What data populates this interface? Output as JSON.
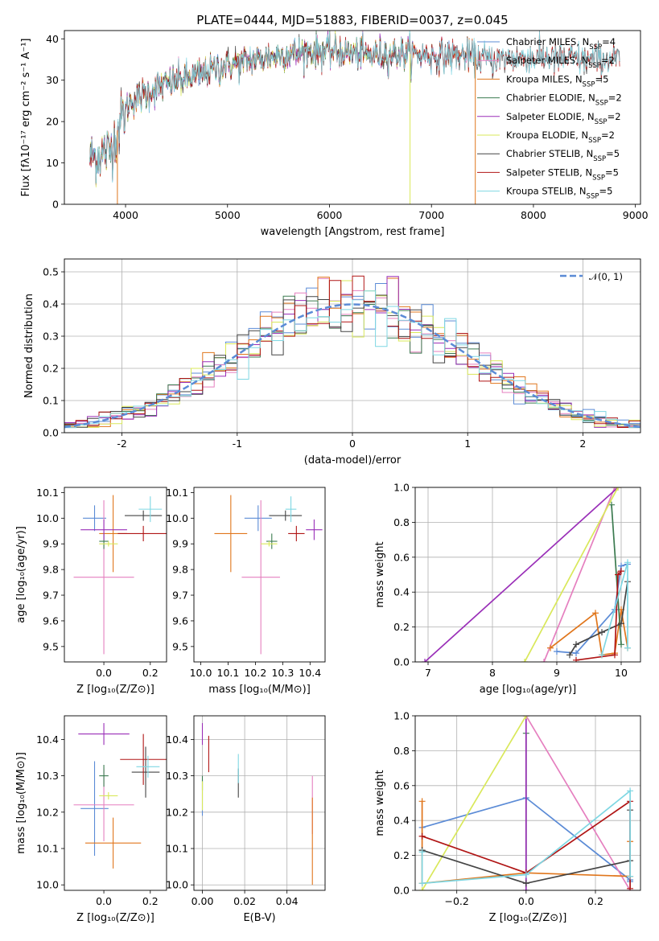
{
  "colors": {
    "Chabrier MILES": "#5b8bd6",
    "Salpeter MILES": "#e57fbf",
    "Kroupa MILES": "#e0761c",
    "Chabrier ELODIE": "#3c7b50",
    "Salpeter ELODIE": "#9a2fb8",
    "Kroupa ELODIE": "#d9e85a",
    "Chabrier STELIB": "#444444",
    "Salpeter STELIB": "#b01515",
    "Kroupa STELIB": "#7fd7e3",
    "normal": "#5b8bd6"
  },
  "chart_data": [
    {
      "id": "spectrum",
      "type": "line",
      "title": "PLATE=0444, MJD=51883, FIBERID=0037, z=0.045",
      "xlabel": "wavelength [Angstrom, rest frame]",
      "ylabel": "Flux [fλ10⁻¹⁷ erg cm⁻² s⁻¹ A⁻¹]",
      "xlim": [
        3400,
        9050
      ],
      "ylim": [
        0,
        42
      ],
      "xticks": [
        4000,
        5000,
        6000,
        7000,
        8000,
        9000
      ],
      "yticks": [
        0,
        10,
        20,
        30,
        40
      ],
      "legend_position": "upper right",
      "legend": [
        {
          "name": "Chabrier MILES",
          "nssp": "4"
        },
        {
          "name": "Salpeter MILES",
          "nssp": "2"
        },
        {
          "name": "Kroupa MILES",
          "nssp": "5"
        },
        {
          "name": "Chabrier ELODIE",
          "nssp": "2"
        },
        {
          "name": "Salpeter ELODIE",
          "nssp": "2"
        },
        {
          "name": "Kroupa ELODIE",
          "nssp": "2"
        },
        {
          "name": "Chabrier STELIB",
          "nssp": "5"
        },
        {
          "name": "Salpeter STELIB",
          "nssp": "5"
        },
        {
          "name": "Kroupa STELIB",
          "nssp": "5"
        }
      ],
      "continuum": {
        "x": [
          3650,
          3750,
          3850,
          3950,
          4050,
          4150,
          4300,
          4500,
          4700,
          4900,
          5100,
          5300,
          5500,
          5800,
          6100,
          6400,
          6700,
          7000,
          7300,
          7600,
          8000,
          8400,
          8800
        ],
        "y": [
          11,
          12,
          13,
          20,
          25,
          26,
          28,
          30,
          31,
          33,
          34,
          35,
          36,
          37,
          37,
          36,
          36.5,
          36,
          36,
          35,
          35.5,
          35,
          35
        ]
      },
      "series_ranges": {
        "Chabrier MILES": [
          3650,
          7400
        ],
        "Salpeter MILES": [
          3650,
          7400
        ],
        "Kroupa MILES": [
          3650,
          7400
        ],
        "Chabrier ELODIE": [
          3650,
          6800
        ],
        "Salpeter ELODIE": [
          3650,
          6800
        ],
        "Kroupa ELODIE": [
          3650,
          6800
        ],
        "Chabrier STELIB": [
          3650,
          8850
        ],
        "Salpeter STELIB": [
          3650,
          8850
        ],
        "Kroupa STELIB": [
          3650,
          8850
        ]
      }
    },
    {
      "id": "residuals",
      "type": "histogram",
      "xlabel": "(data-model)/error",
      "ylabel": "Normed distribution",
      "xlim": [
        -2.5,
        2.5
      ],
      "ylim": [
        0,
        0.54
      ],
      "xticks": [
        -2,
        -1,
        0,
        1,
        2
      ],
      "yticks": [
        0,
        0.1,
        0.2,
        0.3,
        0.4,
        0.5
      ],
      "grid": true,
      "bin_width": 0.1,
      "legend": "𝒩(0, 1)",
      "legend_position": "upper right"
    },
    {
      "id": "z-age",
      "type": "errorbar",
      "xlabel": "Z [log₁₀(Z/Z⊙)]",
      "ylabel": "age  [log₁₀(age/yr)]",
      "xlim": [
        -0.17,
        0.27
      ],
      "ylim": [
        9.44,
        10.12
      ],
      "xticks": [
        0.0,
        0.2
      ],
      "xticklabels": [
        "0.0",
        "0.2"
      ],
      "yticks": [
        9.5,
        9.6,
        9.7,
        9.8,
        9.9,
        10.0,
        10.1
      ],
      "points": [
        {
          "s": "Chabrier MILES",
          "x": -0.04,
          "y": 10.0,
          "xerr": 0.05,
          "yerr": 0.05
        },
        {
          "s": "Salpeter MILES",
          "x": 0.0,
          "y": 9.77,
          "xerr": 0.13,
          "yerr": 0.3
        },
        {
          "s": "Kroupa MILES",
          "x": 0.04,
          "y": 9.94,
          "xerr": 0.06,
          "yerr": 0.15
        },
        {
          "s": "Chabrier ELODIE",
          "x": 0.0,
          "y": 9.91,
          "xerr": 0.02,
          "yerr": 0.03
        },
        {
          "s": "Salpeter ELODIE",
          "x": 0.0,
          "y": 9.955,
          "xerr": 0.1,
          "yerr": 0.04
        },
        {
          "s": "Kroupa ELODIE",
          "x": 0.02,
          "y": 9.9,
          "xerr": 0.04,
          "yerr": 0.01
        },
        {
          "s": "Chabrier STELIB",
          "x": 0.17,
          "y": 10.01,
          "xerr": 0.08,
          "yerr": 0.02
        },
        {
          "s": "Salpeter STELIB",
          "x": 0.17,
          "y": 9.94,
          "xerr": 0.11,
          "yerr": 0.03
        },
        {
          "s": "Kroupa STELIB",
          "x": 0.2,
          "y": 10.035,
          "xerr": 0.05,
          "yerr": 0.05
        }
      ]
    },
    {
      "id": "mass-age",
      "type": "errorbar",
      "xlabel": "mass [log₁₀(M/M⊙)]",
      "ylabel": "",
      "xlim": [
        9.975,
        10.455
      ],
      "ylim": [
        9.44,
        10.12
      ],
      "xticks": [
        10.0,
        10.1,
        10.2,
        10.3,
        10.4
      ],
      "xticklabels": [
        "10.0",
        "10.1",
        "10.2",
        "10.3",
        "10.4"
      ],
      "yticks": [
        9.5,
        9.6,
        9.7,
        9.8,
        9.9,
        10.0,
        10.1
      ],
      "points": [
        {
          "s": "Chabrier MILES",
          "x": 10.21,
          "y": 10.0,
          "xerr": 0.05,
          "yerr": 0.05
        },
        {
          "s": "Salpeter MILES",
          "x": 10.22,
          "y": 9.77,
          "xerr": 0.07,
          "yerr": 0.3
        },
        {
          "s": "Kroupa MILES",
          "x": 10.11,
          "y": 9.94,
          "xerr": 0.06,
          "yerr": 0.15
        },
        {
          "s": "Chabrier ELODIE",
          "x": 10.26,
          "y": 9.91,
          "xerr": 0.02,
          "yerr": 0.03
        },
        {
          "s": "Salpeter ELODIE",
          "x": 10.415,
          "y": 9.955,
          "xerr": 0.03,
          "yerr": 0.04
        },
        {
          "s": "Kroupa ELODIE",
          "x": 10.25,
          "y": 9.9,
          "xerr": 0.03,
          "yerr": 0.01
        },
        {
          "s": "Chabrier STELIB",
          "x": 10.31,
          "y": 10.01,
          "xerr": 0.06,
          "yerr": 0.02
        },
        {
          "s": "Salpeter STELIB",
          "x": 10.35,
          "y": 9.94,
          "xerr": 0.03,
          "yerr": 0.03
        },
        {
          "s": "Kroupa STELIB",
          "x": 10.33,
          "y": 10.035,
          "xerr": 0.02,
          "yerr": 0.05
        }
      ]
    },
    {
      "id": "age-weight",
      "type": "line",
      "xlabel": "age  [log₁₀(age/yr)]",
      "ylabel": "mass weight",
      "xlim": [
        6.8,
        10.3
      ],
      "ylim": [
        0,
        1.0
      ],
      "xticks": [
        7,
        8,
        9,
        10
      ],
      "yticks": [
        0.0,
        0.2,
        0.4,
        0.6,
        0.8,
        1.0
      ],
      "grid": true,
      "series": [
        {
          "name": "Chabrier MILES",
          "x": [
            9.0,
            9.3,
            9.9,
            10.0,
            10.1
          ],
          "y": [
            0.06,
            0.05,
            0.3,
            0.55,
            0.56
          ]
        },
        {
          "name": "Salpeter MILES",
          "x": [
            8.8,
            9.9
          ],
          "y": [
            0.0,
            1.0
          ]
        },
        {
          "name": "Kroupa MILES",
          "x": [
            8.9,
            9.6,
            9.7,
            9.9,
            10.0,
            10.1
          ],
          "y": [
            0.08,
            0.28,
            0.04,
            0.05,
            0.3,
            0.08
          ]
        },
        {
          "name": "Chabrier ELODIE",
          "x": [
            9.85,
            10.0
          ],
          "y": [
            0.9,
            0.1
          ]
        },
        {
          "name": "Salpeter ELODIE",
          "x": [
            6.95,
            9.95
          ],
          "y": [
            0.0,
            1.0
          ]
        },
        {
          "name": "Kroupa ELODIE",
          "x": [
            8.5,
            9.95
          ],
          "y": [
            0.0,
            1.0
          ]
        },
        {
          "name": "Chabrier STELIB",
          "x": [
            9.2,
            9.3,
            9.7,
            10.0,
            10.1
          ],
          "y": [
            0.04,
            0.1,
            0.17,
            0.22,
            0.46
          ]
        },
        {
          "name": "Salpeter STELIB",
          "x": [
            9.3,
            9.9,
            9.95,
            10.0
          ],
          "y": [
            0.01,
            0.04,
            0.5,
            0.52
          ]
        },
        {
          "name": "Kroupa STELIB",
          "x": [
            9.7,
            10.1,
            10.1
          ],
          "y": [
            0.04,
            0.57,
            0.08
          ]
        }
      ]
    },
    {
      "id": "z-mass",
      "type": "errorbar",
      "xlabel": "Z [log₁₀(Z/Z⊙)]",
      "ylabel": "mass [log₁₀(M/M⊙)]",
      "xlim": [
        -0.17,
        0.27
      ],
      "ylim": [
        9.985,
        10.465
      ],
      "xticks": [
        0.0,
        0.2
      ],
      "xticklabels": [
        "0.0",
        "0.2"
      ],
      "yticks": [
        10.0,
        10.1,
        10.2,
        10.3,
        10.4
      ],
      "points": [
        {
          "s": "Chabrier MILES",
          "x": -0.04,
          "y": 10.21,
          "xerr": 0.06,
          "yerr": 0.13
        },
        {
          "s": "Salpeter MILES",
          "x": 0.0,
          "y": 10.22,
          "xerr": 0.13,
          "yerr": 0.1
        },
        {
          "s": "Kroupa MILES",
          "x": 0.04,
          "y": 10.115,
          "xerr": 0.12,
          "yerr": 0.07
        },
        {
          "s": "Chabrier ELODIE",
          "x": 0.0,
          "y": 10.3,
          "xerr": 0.02,
          "yerr": 0.03
        },
        {
          "s": "Salpeter ELODIE",
          "x": 0.0,
          "y": 10.415,
          "xerr": 0.11,
          "yerr": 0.03
        },
        {
          "s": "Kroupa ELODIE",
          "x": 0.02,
          "y": 10.245,
          "xerr": 0.04,
          "yerr": 0.01
        },
        {
          "s": "Chabrier STELIB",
          "x": 0.18,
          "y": 10.31,
          "xerr": 0.06,
          "yerr": 0.07
        },
        {
          "s": "Salpeter STELIB",
          "x": 0.17,
          "y": 10.345,
          "xerr": 0.1,
          "yerr": 0.07
        },
        {
          "s": "Kroupa STELIB",
          "x": 0.19,
          "y": 10.325,
          "xerr": 0.05,
          "yerr": 0.03
        }
      ]
    },
    {
      "id": "ebv-mass",
      "type": "errorbar",
      "xlabel": "E(B-V)",
      "ylabel": "",
      "xlim": [
        -0.004,
        0.058
      ],
      "ylim": [
        9.985,
        10.465
      ],
      "xticks": [
        0.0,
        0.02,
        0.04
      ],
      "xticklabels": [
        "0.00",
        "0.02",
        "0.04"
      ],
      "yticks": [
        10.0,
        10.1,
        10.2,
        10.3,
        10.4
      ],
      "grid": true,
      "points": [
        {
          "s": "Chabrier MILES",
          "x": 0.0,
          "y": 10.24,
          "xerr": 0,
          "yerr": 0.05
        },
        {
          "s": "Salpeter MILES",
          "x": 0.052,
          "y": 10.22,
          "xerr": 0,
          "yerr": 0.08
        },
        {
          "s": "Kroupa MILES",
          "x": 0.052,
          "y": 10.12,
          "xerr": 0,
          "yerr": 0.12
        },
        {
          "s": "Chabrier ELODIE",
          "x": 0.0,
          "y": 10.28,
          "xerr": 0,
          "yerr": 0.02
        },
        {
          "s": "Salpeter ELODIE",
          "x": 0.0,
          "y": 10.415,
          "xerr": 0,
          "yerr": 0.03
        },
        {
          "s": "Kroupa ELODIE",
          "x": 0.0,
          "y": 10.245,
          "xerr": 0,
          "yerr": 0.04
        },
        {
          "s": "Chabrier STELIB",
          "x": 0.017,
          "y": 10.28,
          "xerr": 0,
          "yerr": 0.04
        },
        {
          "s": "Salpeter STELIB",
          "x": 0.003,
          "y": 10.36,
          "xerr": 0,
          "yerr": 0.05
        },
        {
          "s": "Kroupa STELIB",
          "x": 0.017,
          "y": 10.32,
          "xerr": 0,
          "yerr": 0.04
        }
      ]
    },
    {
      "id": "z-weight",
      "type": "line",
      "xlabel": "Z [log₁₀(Z/Z⊙)]",
      "ylabel": "mass weight",
      "xlim": [
        -0.32,
        0.33
      ],
      "ylim": [
        0,
        1.0
      ],
      "xticks": [
        -0.2,
        0.0,
        0.2
      ],
      "xticklabels": [
        "−0.2",
        "0.0",
        "0.2"
      ],
      "yticks": [
        0.0,
        0.2,
        0.4,
        0.6,
        0.8,
        1.0
      ],
      "grid": true,
      "series": [
        {
          "name": "Chabrier MILES",
          "x": [
            -0.3,
            0.0,
            0.3,
            0.3
          ],
          "y": [
            0.36,
            0.53,
            0.06,
            0.05
          ]
        },
        {
          "name": "Salpeter MILES",
          "x": [
            0.0,
            0.3
          ],
          "y": [
            1.0,
            0.0
          ]
        },
        {
          "name": "Kroupa MILES",
          "x": [
            -0.3,
            -0.3,
            0.0,
            0.3,
            0.3
          ],
          "y": [
            0.51,
            0.04,
            0.1,
            0.08,
            0.28
          ]
        },
        {
          "name": "Chabrier ELODIE",
          "x": [
            0.0,
            0.0
          ],
          "y": [
            0.9,
            0.1
          ]
        },
        {
          "name": "Salpeter ELODIE",
          "x": [
            0.0,
            0.0
          ],
          "y": [
            0.0,
            1.0
          ]
        },
        {
          "name": "Kroupa ELODIE",
          "x": [
            -0.3,
            0.0
          ],
          "y": [
            0.0,
            1.0
          ]
        },
        {
          "name": "Chabrier STELIB",
          "x": [
            -0.3,
            0.0,
            0.3,
            0.3
          ],
          "y": [
            0.23,
            0.04,
            0.17,
            0.46
          ]
        },
        {
          "name": "Salpeter STELIB",
          "x": [
            -0.3,
            0.0,
            0.3,
            0.3
          ],
          "y": [
            0.31,
            0.1,
            0.51,
            0.01
          ]
        },
        {
          "name": "Kroupa STELIB",
          "x": [
            -0.3,
            -0.3,
            0.0,
            0.3,
            0.3
          ],
          "y": [
            0.22,
            0.04,
            0.09,
            0.57,
            0.08
          ]
        }
      ]
    }
  ]
}
